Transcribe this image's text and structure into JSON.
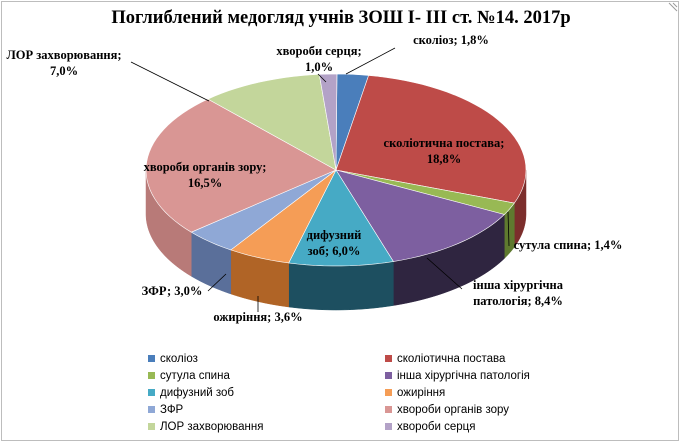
{
  "chart_data": {
    "type": "pie",
    "title": "Поглиблений медогляд учнів ЗОШ І- ІІІ ст. №14. 2017р",
    "slices": [
      {
        "name": "сколіоз",
        "value": 1.8,
        "label": "сколіоз; 1,8%",
        "color": "#4a7ebb",
        "side": "#2e5485"
      },
      {
        "name": "сколіотична постава",
        "value": 18.8,
        "label": "сколіотична постава;\n18,8%",
        "color": "#be4b48",
        "side": "#7c2e2c"
      },
      {
        "name": "сутула спина",
        "value": 1.4,
        "label": "сутула спина; 1,4%",
        "color": "#98b954",
        "side": "#5f7a2f"
      },
      {
        "name": "інша хірургічна патологія",
        "value": 8.4,
        "label": "інша хірургічна\nпатологія; 8,4%",
        "color": "#7d5fa0",
        "side": "#2f2540"
      },
      {
        "name": "дифузний зоб",
        "value": 6.0,
        "label": "дифузний\nзоб; 6,0%",
        "color": "#46aac5",
        "side": "#1d4f60"
      },
      {
        "name": "ожиріння",
        "value": 3.6,
        "label": "ожиріння; 3,6%",
        "color": "#f59d56",
        "side": "#b06426"
      },
      {
        "name": "ЗФР",
        "value": 3.0,
        "label": "ЗФР; 3,0%",
        "color": "#8fa8d6",
        "side": "#5a6f9a"
      },
      {
        "name": "хвороби органів зору",
        "value": 16.5,
        "label": "хвороби органів зору;\n16,5%",
        "color": "#d99694",
        "side": "#b87a78"
      },
      {
        "name": "ЛОР захворювання",
        "value": 7.0,
        "label": "ЛОР захворювання;\n7,0%",
        "color": "#c3d69b",
        "side": "#9fb076"
      },
      {
        "name": "хвороби серця",
        "value": 1.0,
        "label": "хвороби серця;\n1,0%",
        "color": "#b3a2c7",
        "side": "#8a7c9c"
      }
    ],
    "legend": {
      "placement": "bottom",
      "items": [
        {
          "label": "сколіоз",
          "color": "#4a7ebb"
        },
        {
          "label": "сколіотична постава",
          "color": "#be4b48"
        },
        {
          "label": "сутула спина",
          "color": "#98b954"
        },
        {
          "label": "інша хірургічна патологія",
          "color": "#7d5fa0"
        },
        {
          "label": "дифузний зоб",
          "color": "#46aac5"
        },
        {
          "label": "ожиріння",
          "color": "#f59d56"
        },
        {
          "label": "ЗФР",
          "color": "#8fa8d6"
        },
        {
          "label": "хвороби органів зору",
          "color": "#d99694"
        },
        {
          "label": "ЛОР захворювання",
          "color": "#c3d69b"
        },
        {
          "label": "хвороби серця",
          "color": "#b3a2c7"
        }
      ]
    }
  }
}
